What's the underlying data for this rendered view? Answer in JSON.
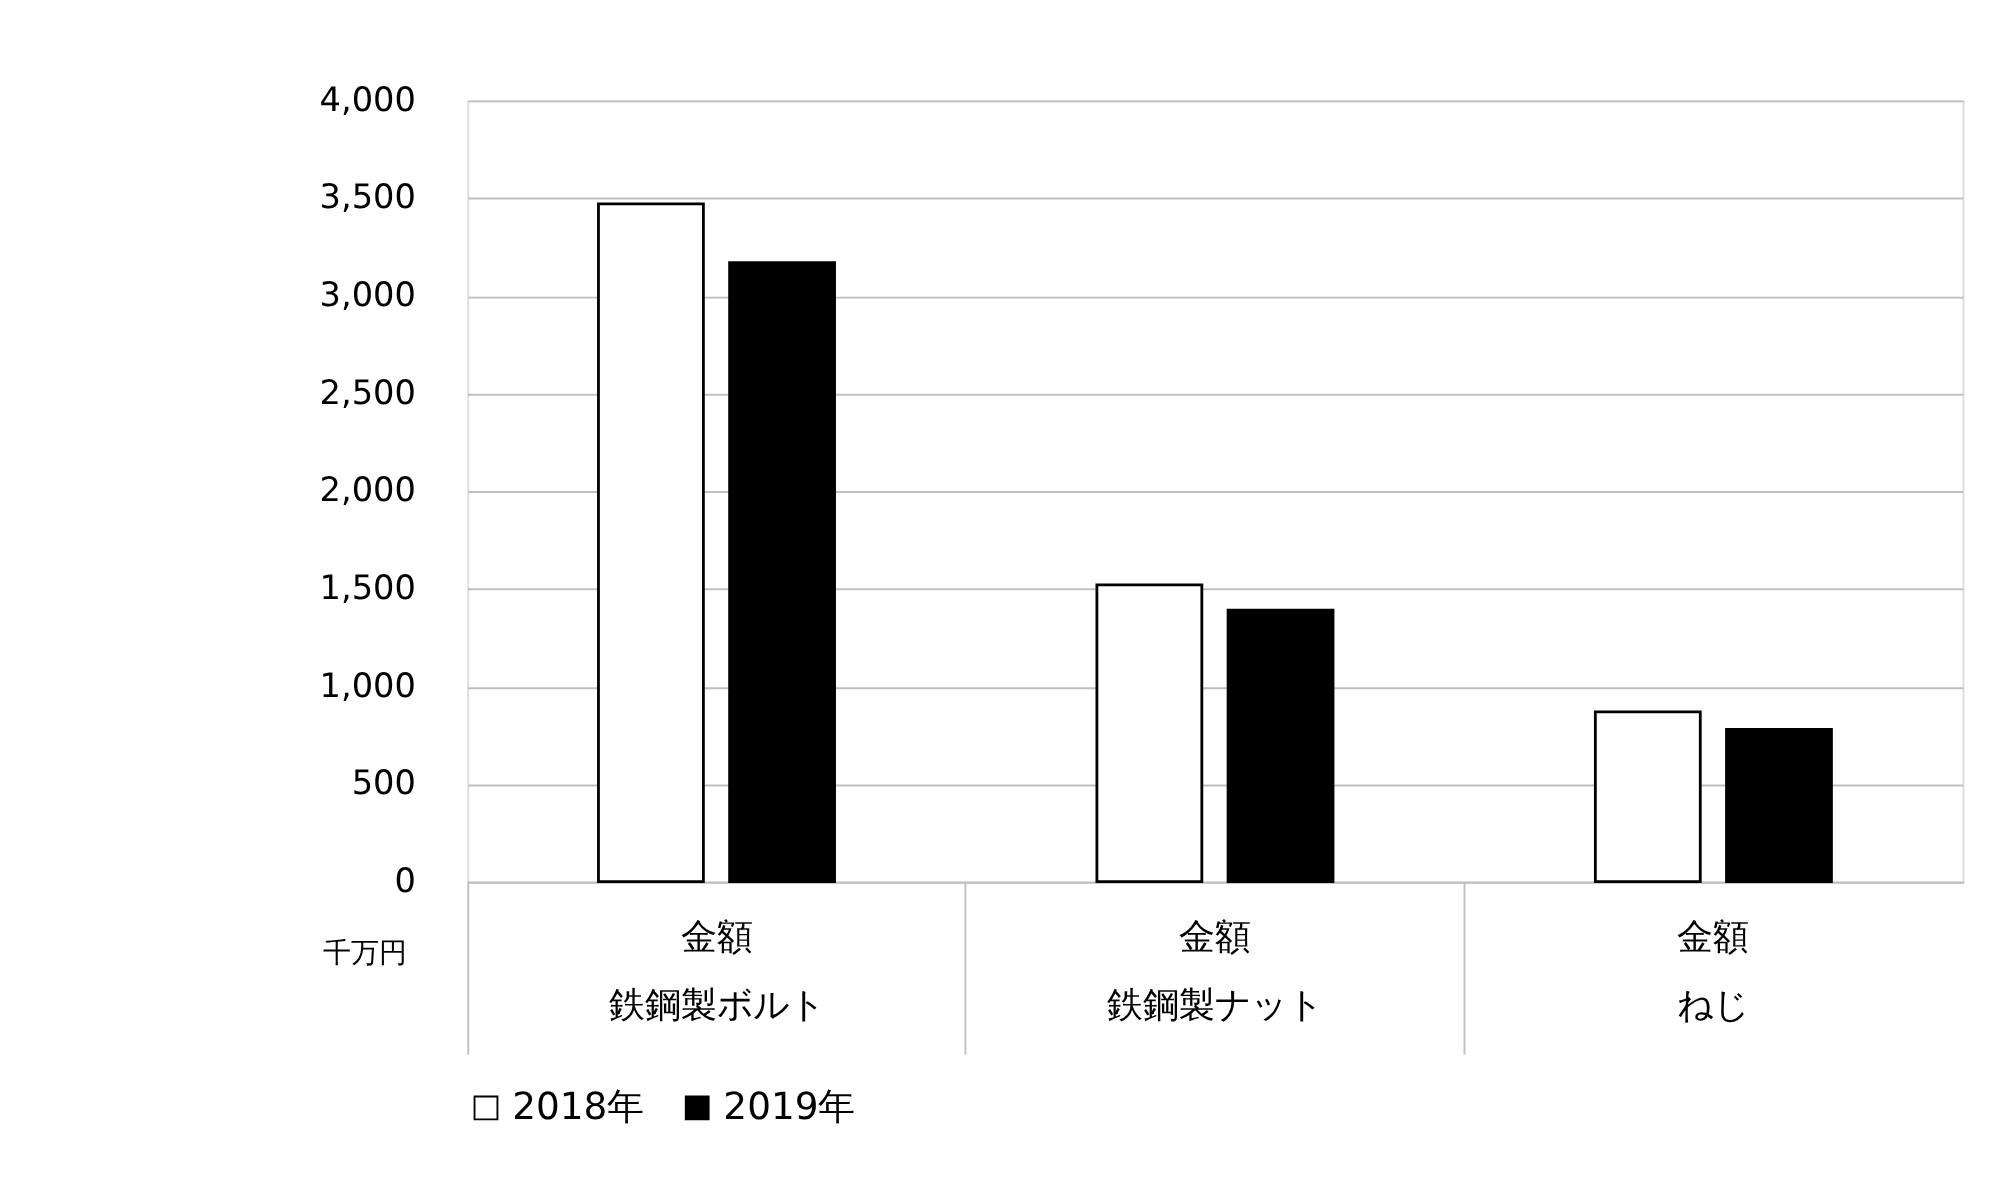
{
  "chart_data": {
    "type": "bar",
    "ylabel": "千万円",
    "categories": [
      "鉄鋼製ボルト",
      "鉄鋼製ナット",
      "ねじ"
    ],
    "annotations": [
      "金額",
      "金額",
      "金額"
    ],
    "series": [
      {
        "name": "2018年",
        "color": "#ffffff",
        "values": [
          3470,
          1520,
          870
        ]
      },
      {
        "name": "2019年",
        "color": "#000000",
        "values": [
          3170,
          1390,
          780
        ]
      }
    ],
    "ylim": [
      0,
      4000
    ],
    "yticks": [
      0,
      500,
      {
        "value": 1000,
        "label": "1,000"
      },
      {
        "value": 1500,
        "label": "1,500"
      },
      {
        "value": 2000,
        "label": "2,000"
      },
      {
        "value": 2500,
        "label": "2,500"
      },
      {
        "value": 3000,
        "label": "3,000"
      },
      {
        "value": 3500,
        "label": "3,500"
      },
      {
        "value": 4000,
        "label": "4,000"
      }
    ],
    "grid": "y",
    "legend": "bottom"
  }
}
